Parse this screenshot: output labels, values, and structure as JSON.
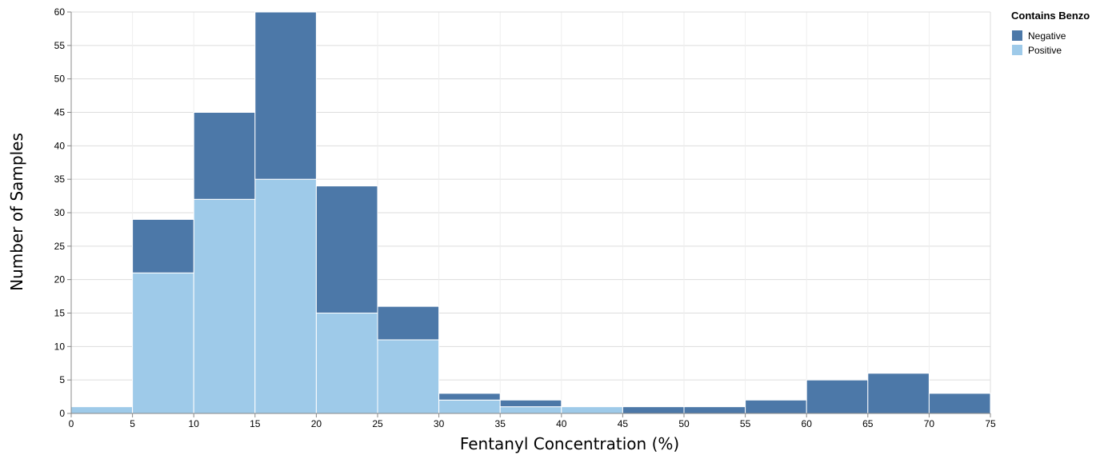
{
  "chart_data": {
    "type": "bar",
    "stacked": true,
    "xlabel": "Fentanyl Concentration (%)",
    "ylabel": "Number of Samples",
    "x_ticks": [
      "0",
      "5",
      "10",
      "15",
      "20",
      "25",
      "30",
      "35",
      "40",
      "45",
      "50",
      "55",
      "60",
      "65",
      "70",
      "75"
    ],
    "y_ticks": [
      "0",
      "5",
      "10",
      "15",
      "20",
      "25",
      "30",
      "35",
      "40",
      "45",
      "50",
      "55",
      "60"
    ],
    "xlim": [
      0,
      75
    ],
    "ylim": [
      0,
      60
    ],
    "bin_width": 5,
    "grid": true,
    "legend": {
      "title": "Contains Benzo",
      "placement": "top-right",
      "entries": [
        "Negative",
        "Positive"
      ]
    },
    "bins": [
      0,
      5,
      10,
      15,
      20,
      25,
      30,
      35,
      40,
      45,
      50,
      55,
      60,
      65,
      70
    ],
    "series": [
      {
        "name": "Positive",
        "color": "#9ecae9",
        "values": [
          1,
          21,
          32,
          35,
          15,
          11,
          2,
          1,
          1,
          0,
          0,
          0,
          0,
          0,
          0
        ]
      },
      {
        "name": "Negative",
        "color": "#4c78a8",
        "values": [
          0,
          8,
          13,
          25,
          19,
          5,
          1,
          1,
          0,
          1,
          1,
          2,
          5,
          6,
          3
        ]
      }
    ]
  }
}
